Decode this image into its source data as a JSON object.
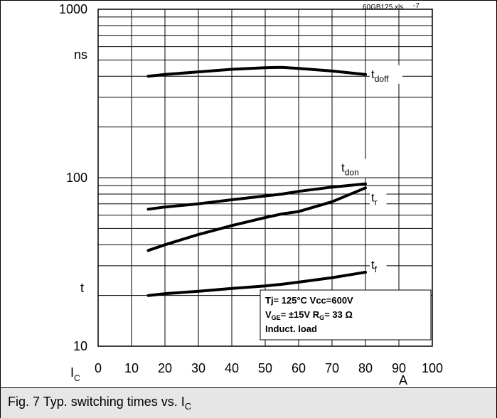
{
  "caption": {
    "text": "Fig. 7 Typ. switching times vs. I",
    "sub": "C"
  },
  "file_label": "60GB125.xls",
  "page_tag": "-7",
  "chart_data": {
    "type": "line",
    "title": "",
    "x": [
      15,
      20,
      30,
      40,
      50,
      55,
      60,
      70,
      80
    ],
    "xlim": [
      0,
      100
    ],
    "x_ticks": [
      0,
      10,
      20,
      30,
      40,
      50,
      60,
      70,
      80,
      90,
      100
    ],
    "xlabel": "I",
    "xlabel_sub": "C",
    "x_unit": "A",
    "ylim": [
      10,
      1000
    ],
    "y_scale": "log",
    "y_tick_labels": [
      "1000",
      "100",
      "10"
    ],
    "y_unit_label": "ns",
    "y_axis_label": "t",
    "grid": true,
    "series": [
      {
        "name": "t",
        "sub": "doff",
        "values": [
          400,
          410,
          425,
          440,
          450,
          452,
          445,
          430,
          410
        ]
      },
      {
        "name": "t",
        "sub": "don",
        "values": [
          65,
          67,
          70,
          74,
          78,
          80,
          83,
          88,
          92
        ]
      },
      {
        "name": "t",
        "sub": "r",
        "values": [
          37,
          40,
          46,
          52,
          58,
          61,
          63,
          72,
          87
        ]
      },
      {
        "name": "t",
        "sub": "f",
        "values": [
          20,
          20.5,
          21.2,
          22,
          22.8,
          23.3,
          24,
          25.5,
          27.5
        ]
      }
    ],
    "conditions": [
      {
        "text": "Tj= 125°C Vcc=600V"
      },
      {
        "pre": "V",
        "pre_sub": "GE",
        "mid": "= ±15V R",
        "mid_sub": "G",
        "post": "=  33 Ω"
      },
      {
        "text": "Induct. load"
      }
    ]
  }
}
